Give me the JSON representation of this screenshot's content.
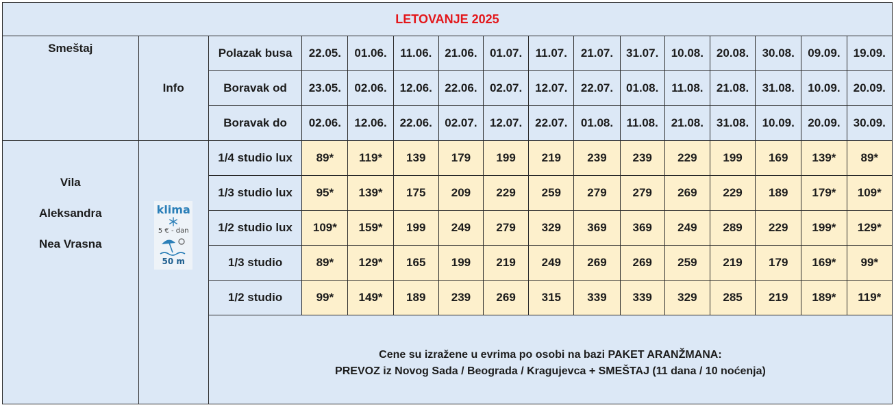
{
  "title": "LETOVANJE 2025",
  "header": {
    "smestaj_label": "Smeštaj",
    "info_label": "Info",
    "row_labels": [
      "Polazak busa",
      "Boravak od",
      "Boravak do"
    ],
    "polazak": [
      "22.05.",
      "01.06.",
      "11.06.",
      "21.06.",
      "01.07.",
      "11.07.",
      "21.07.",
      "31.07.",
      "10.08.",
      "20.08.",
      "30.08.",
      "09.09.",
      "19.09."
    ],
    "boravak_od": [
      "23.05.",
      "02.06.",
      "12.06.",
      "22.06.",
      "02.07.",
      "12.07.",
      "22.07.",
      "01.08.",
      "11.08.",
      "21.08.",
      "31.08.",
      "10.09.",
      "20.09."
    ],
    "boravak_do": [
      "02.06.",
      "12.06.",
      "22.06.",
      "02.07.",
      "12.07.",
      "22.07.",
      "01.08.",
      "11.08.",
      "21.08.",
      "31.08.",
      "10.09.",
      "20.09.",
      "30.09."
    ]
  },
  "accommodation": {
    "lines": [
      "Vila",
      "Aleksandra",
      "Nea Vrasna"
    ]
  },
  "info_badge": {
    "klima": "klima",
    "price": "5 € - dan",
    "distance": "50 m",
    "icons": [
      "snowflake-icon",
      "beach-umbrella-icon"
    ],
    "accent_color": "#2b7fb8"
  },
  "rooms": [
    {
      "type": "1/4 studio lux",
      "prices": [
        "89*",
        "119*",
        "139",
        "179",
        "199",
        "219",
        "239",
        "239",
        "229",
        "199",
        "169",
        "139*",
        "89*"
      ]
    },
    {
      "type": "1/3 studio lux",
      "prices": [
        "95*",
        "139*",
        "175",
        "209",
        "229",
        "259",
        "279",
        "279",
        "269",
        "229",
        "189",
        "179*",
        "109*"
      ]
    },
    {
      "type": "1/2 studio lux",
      "prices": [
        "109*",
        "159*",
        "199",
        "249",
        "279",
        "329",
        "369",
        "369",
        "249",
        "289",
        "229",
        "199*",
        "129*"
      ]
    },
    {
      "type": "1/3 studio",
      "prices": [
        "89*",
        "129*",
        "165",
        "199",
        "219",
        "249",
        "269",
        "269",
        "259",
        "219",
        "179",
        "169*",
        "99*"
      ]
    },
    {
      "type": "1/2 studio",
      "prices": [
        "99*",
        "149*",
        "189",
        "239",
        "269",
        "315",
        "339",
        "339",
        "329",
        "285",
        "219",
        "189*",
        "119*"
      ]
    }
  ],
  "note": {
    "line1": "Cene su izražene u evrima po osobi na bazi PAKET ARANŽMANA:",
    "line2": "PREVOZ iz Novog Sada / Beograda / Kragujevca + SMEŠTAJ (11 dana / 10 noćenja)"
  },
  "colors": {
    "title": "#e3171b",
    "header_bg": "#dce8f6",
    "price_bg": "#fdf0cc"
  }
}
